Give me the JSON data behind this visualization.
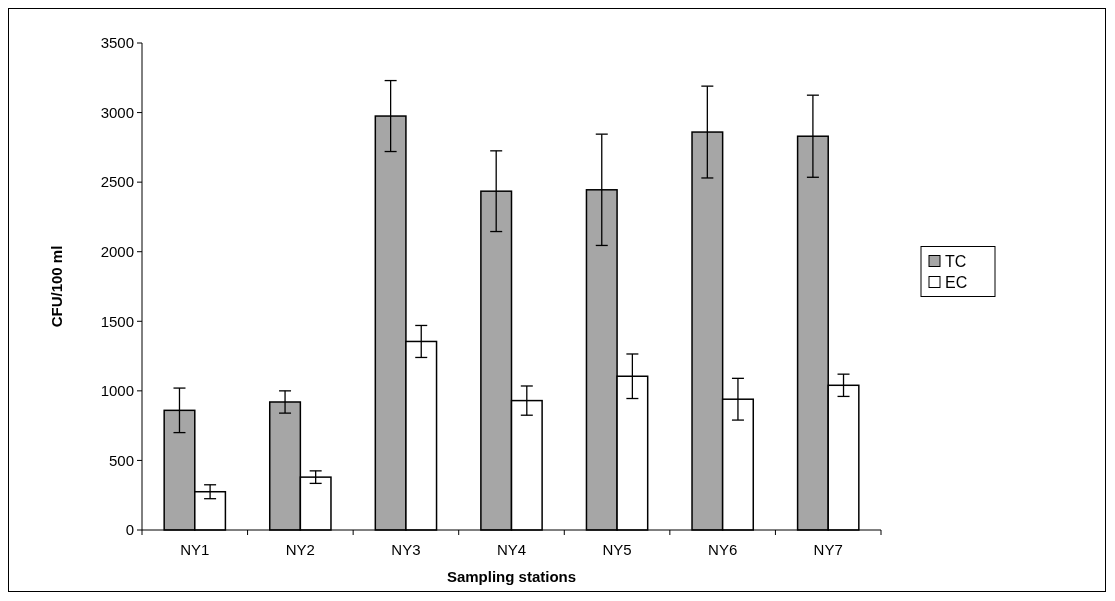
{
  "chart_data": {
    "type": "bar",
    "xlabel": "Sampling stations",
    "ylabel": "CFU/100 ml",
    "categories": [
      "NY1",
      "NY2",
      "NY3",
      "NY4",
      "NY5",
      "NY6",
      "NY7"
    ],
    "series": [
      {
        "name": "TC",
        "color": "#a6a6a6",
        "values": [
          860,
          920,
          2975,
          2435,
          2445,
          2860,
          2830
        ],
        "errors": [
          160,
          80,
          255,
          290,
          400,
          330,
          295
        ]
      },
      {
        "name": "EC",
        "color": "#ffffff",
        "values": [
          275,
          380,
          1355,
          930,
          1105,
          940,
          1040
        ],
        "errors": [
          50,
          45,
          115,
          105,
          160,
          150,
          80
        ]
      }
    ],
    "ylim": [
      0,
      3500
    ],
    "yticks": [
      0,
      500,
      1000,
      1500,
      2000,
      2500,
      3000,
      3500
    ],
    "grid": false,
    "legend": "right"
  }
}
